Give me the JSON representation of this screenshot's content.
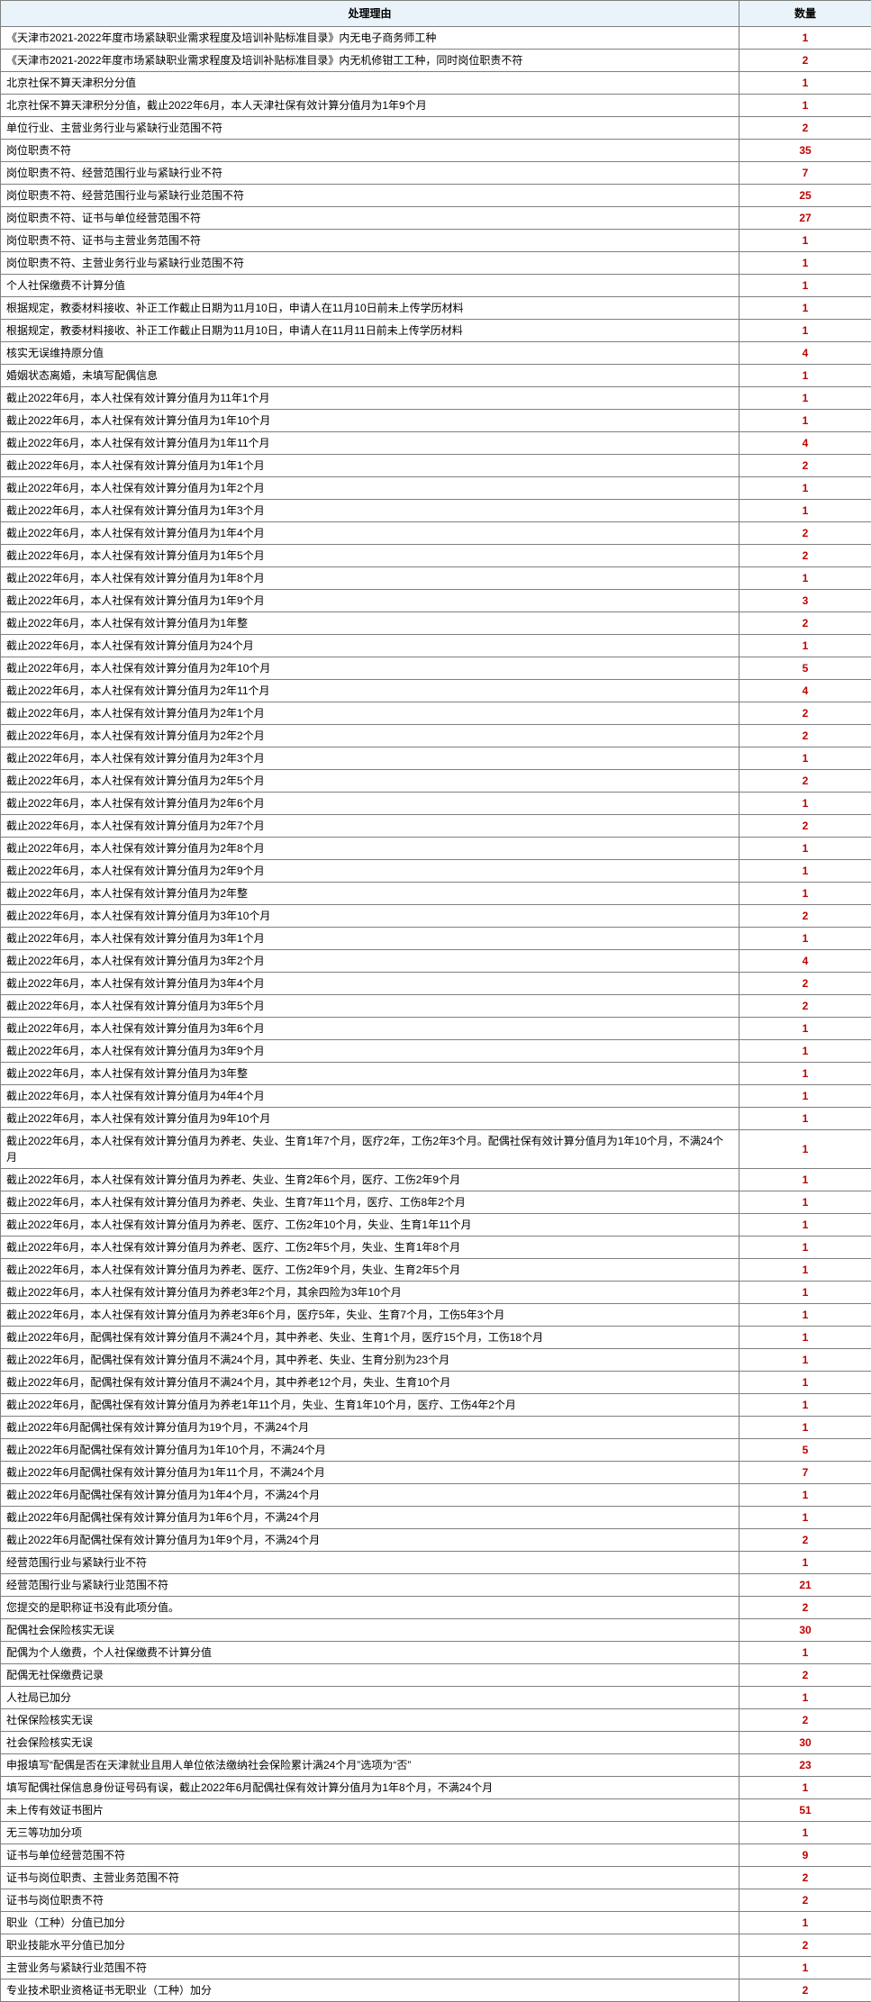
{
  "table": {
    "headers": {
      "reason": "处理理由",
      "count": "数量"
    },
    "rows": [
      {
        "reason": "《天津市2021-2022年度市场紧缺职业需求程度及培训补贴标准目录》内无电子商务师工种",
        "count": "1"
      },
      {
        "reason": "《天津市2021-2022年度市场紧缺职业需求程度及培训补贴标准目录》内无机修钳工工种，同时岗位职责不符",
        "count": "2"
      },
      {
        "reason": "北京社保不算天津积分分值",
        "count": "1"
      },
      {
        "reason": "北京社保不算天津积分分值，截止2022年6月，本人天津社保有效计算分值月为1年9个月",
        "count": "1"
      },
      {
        "reason": "单位行业、主营业务行业与紧缺行业范围不符",
        "count": "2"
      },
      {
        "reason": "岗位职责不符",
        "count": "35"
      },
      {
        "reason": "岗位职责不符、经营范围行业与紧缺行业不符",
        "count": "7"
      },
      {
        "reason": "岗位职责不符、经营范围行业与紧缺行业范围不符",
        "count": "25"
      },
      {
        "reason": "岗位职责不符、证书与单位经营范围不符",
        "count": "27"
      },
      {
        "reason": "岗位职责不符、证书与主营业务范围不符",
        "count": "1"
      },
      {
        "reason": "岗位职责不符、主营业务行业与紧缺行业范围不符",
        "count": "1"
      },
      {
        "reason": "个人社保缴费不计算分值",
        "count": "1"
      },
      {
        "reason": "根据规定，教委材料接收、补正工作截止日期为11月10日，申请人在11月10日前未上传学历材料",
        "count": "1"
      },
      {
        "reason": "根据规定，教委材料接收、补正工作截止日期为11月10日，申请人在11月11日前未上传学历材料",
        "count": "1"
      },
      {
        "reason": "核实无误维持原分值",
        "count": "4"
      },
      {
        "reason": "婚姻状态离婚，未填写配偶信息",
        "count": "1"
      },
      {
        "reason": "截止2022年6月，本人社保有效计算分值月为11年1个月",
        "count": "1"
      },
      {
        "reason": "截止2022年6月，本人社保有效计算分值月为1年10个月",
        "count": "1"
      },
      {
        "reason": "截止2022年6月，本人社保有效计算分值月为1年11个月",
        "count": "4"
      },
      {
        "reason": "截止2022年6月，本人社保有效计算分值月为1年1个月",
        "count": "2"
      },
      {
        "reason": "截止2022年6月，本人社保有效计算分值月为1年2个月",
        "count": "1"
      },
      {
        "reason": "截止2022年6月，本人社保有效计算分值月为1年3个月",
        "count": "1"
      },
      {
        "reason": "截止2022年6月，本人社保有效计算分值月为1年4个月",
        "count": "2"
      },
      {
        "reason": "截止2022年6月，本人社保有效计算分值月为1年5个月",
        "count": "2"
      },
      {
        "reason": "截止2022年6月，本人社保有效计算分值月为1年8个月",
        "count": "1"
      },
      {
        "reason": "截止2022年6月，本人社保有效计算分值月为1年9个月",
        "count": "3"
      },
      {
        "reason": "截止2022年6月，本人社保有效计算分值月为1年整",
        "count": "2"
      },
      {
        "reason": "截止2022年6月，本人社保有效计算分值月为24个月",
        "count": "1"
      },
      {
        "reason": "截止2022年6月，本人社保有效计算分值月为2年10个月",
        "count": "5"
      },
      {
        "reason": "截止2022年6月，本人社保有效计算分值月为2年11个月",
        "count": "4"
      },
      {
        "reason": "截止2022年6月，本人社保有效计算分值月为2年1个月",
        "count": "2"
      },
      {
        "reason": "截止2022年6月，本人社保有效计算分值月为2年2个月",
        "count": "2"
      },
      {
        "reason": "截止2022年6月，本人社保有效计算分值月为2年3个月",
        "count": "1"
      },
      {
        "reason": "截止2022年6月，本人社保有效计算分值月为2年5个月",
        "count": "2"
      },
      {
        "reason": "截止2022年6月，本人社保有效计算分值月为2年6个月",
        "count": "1"
      },
      {
        "reason": "截止2022年6月，本人社保有效计算分值月为2年7个月",
        "count": "2"
      },
      {
        "reason": "截止2022年6月，本人社保有效计算分值月为2年8个月",
        "count": "1"
      },
      {
        "reason": "截止2022年6月，本人社保有效计算分值月为2年9个月",
        "count": "1"
      },
      {
        "reason": "截止2022年6月，本人社保有效计算分值月为2年整",
        "count": "1"
      },
      {
        "reason": "截止2022年6月，本人社保有效计算分值月为3年10个月",
        "count": "2"
      },
      {
        "reason": "截止2022年6月，本人社保有效计算分值月为3年1个月",
        "count": "1"
      },
      {
        "reason": "截止2022年6月，本人社保有效计算分值月为3年2个月",
        "count": "4"
      },
      {
        "reason": "截止2022年6月，本人社保有效计算分值月为3年4个月",
        "count": "2"
      },
      {
        "reason": "截止2022年6月，本人社保有效计算分值月为3年5个月",
        "count": "2"
      },
      {
        "reason": "截止2022年6月，本人社保有效计算分值月为3年6个月",
        "count": "1"
      },
      {
        "reason": "截止2022年6月，本人社保有效计算分值月为3年9个月",
        "count": "1"
      },
      {
        "reason": "截止2022年6月，本人社保有效计算分值月为3年整",
        "count": "1"
      },
      {
        "reason": "截止2022年6月，本人社保有效计算分值月为4年4个月",
        "count": "1"
      },
      {
        "reason": "截止2022年6月，本人社保有效计算分值月为9年10个月",
        "count": "1"
      },
      {
        "reason": "截止2022年6月，本人社保有效计算分值月为养老、失业、生育1年7个月，医疗2年，工伤2年3个月。配偶社保有效计算分值月为1年10个月，不满24个月",
        "count": "1"
      },
      {
        "reason": "截止2022年6月，本人社保有效计算分值月为养老、失业、生育2年6个月，医疗、工伤2年9个月",
        "count": "1"
      },
      {
        "reason": "截止2022年6月，本人社保有效计算分值月为养老、失业、生育7年11个月，医疗、工伤8年2个月",
        "count": "1"
      },
      {
        "reason": "截止2022年6月，本人社保有效计算分值月为养老、医疗、工伤2年10个月，失业、生育1年11个月",
        "count": "1"
      },
      {
        "reason": "截止2022年6月，本人社保有效计算分值月为养老、医疗、工伤2年5个月，失业、生育1年8个月",
        "count": "1"
      },
      {
        "reason": "截止2022年6月，本人社保有效计算分值月为养老、医疗、工伤2年9个月，失业、生育2年5个月",
        "count": "1"
      },
      {
        "reason": "截止2022年6月，本人社保有效计算分值月为养老3年2个月，其余四险为3年10个月",
        "count": "1"
      },
      {
        "reason": "截止2022年6月，本人社保有效计算分值月为养老3年6个月，医疗5年，失业、生育7个月，工伤5年3个月",
        "count": "1"
      },
      {
        "reason": "截止2022年6月，配偶社保有效计算分值月不满24个月，其中养老、失业、生育1个月，医疗15个月，工伤18个月",
        "count": "1"
      },
      {
        "reason": "截止2022年6月，配偶社保有效计算分值月不满24个月，其中养老、失业、生育分别为23个月",
        "count": "1"
      },
      {
        "reason": "截止2022年6月，配偶社保有效计算分值月不满24个月，其中养老12个月，失业、生育10个月",
        "count": "1"
      },
      {
        "reason": "截止2022年6月，配偶社保有效计算分值月为养老1年11个月，失业、生育1年10个月，医疗、工伤4年2个月",
        "count": "1"
      },
      {
        "reason": "截止2022年6月配偶社保有效计算分值月为19个月，不满24个月",
        "count": "1"
      },
      {
        "reason": "截止2022年6月配偶社保有效计算分值月为1年10个月，不满24个月",
        "count": "5"
      },
      {
        "reason": "截止2022年6月配偶社保有效计算分值月为1年11个月，不满24个月",
        "count": "7"
      },
      {
        "reason": "截止2022年6月配偶社保有效计算分值月为1年4个月，不满24个月",
        "count": "1"
      },
      {
        "reason": "截止2022年6月配偶社保有效计算分值月为1年6个月，不满24个月",
        "count": "1"
      },
      {
        "reason": "截止2022年6月配偶社保有效计算分值月为1年9个月，不满24个月",
        "count": "2"
      },
      {
        "reason": "经营范围行业与紧缺行业不符",
        "count": "1"
      },
      {
        "reason": "经营范围行业与紧缺行业范围不符",
        "count": "21"
      },
      {
        "reason": "您提交的是职称证书没有此项分值。",
        "count": "2"
      },
      {
        "reason": "配偶社会保险核实无误",
        "count": "30"
      },
      {
        "reason": "配偶为个人缴费，个人社保缴费不计算分值",
        "count": "1"
      },
      {
        "reason": "配偶无社保缴费记录",
        "count": "2"
      },
      {
        "reason": "人社局已加分",
        "count": "1"
      },
      {
        "reason": "社保保险核实无误",
        "count": "2"
      },
      {
        "reason": "社会保险核实无误",
        "count": "30"
      },
      {
        "reason": "申报填写“配偶是否在天津就业且用人单位依法缴纳社会保险累计满24个月”选项为“否”",
        "count": "23"
      },
      {
        "reason": "填写配偶社保信息身份证号码有误，截止2022年6月配偶社保有效计算分值月为1年8个月，不满24个月",
        "count": "1"
      },
      {
        "reason": "未上传有效证书图片",
        "count": "51"
      },
      {
        "reason": "无三等功加分项",
        "count": "1"
      },
      {
        "reason": "证书与单位经营范围不符",
        "count": "9"
      },
      {
        "reason": "证书与岗位职责、主营业务范围不符",
        "count": "2"
      },
      {
        "reason": "证书与岗位职责不符",
        "count": "2"
      },
      {
        "reason": "职业（工种）分值已加分",
        "count": "1"
      },
      {
        "reason": "职业技能水平分值已加分",
        "count": "2"
      },
      {
        "reason": "主营业务与紧缺行业范围不符",
        "count": "1"
      },
      {
        "reason": "专业技术职业资格证书无职业（工种）加分",
        "count": "2"
      }
    ]
  }
}
